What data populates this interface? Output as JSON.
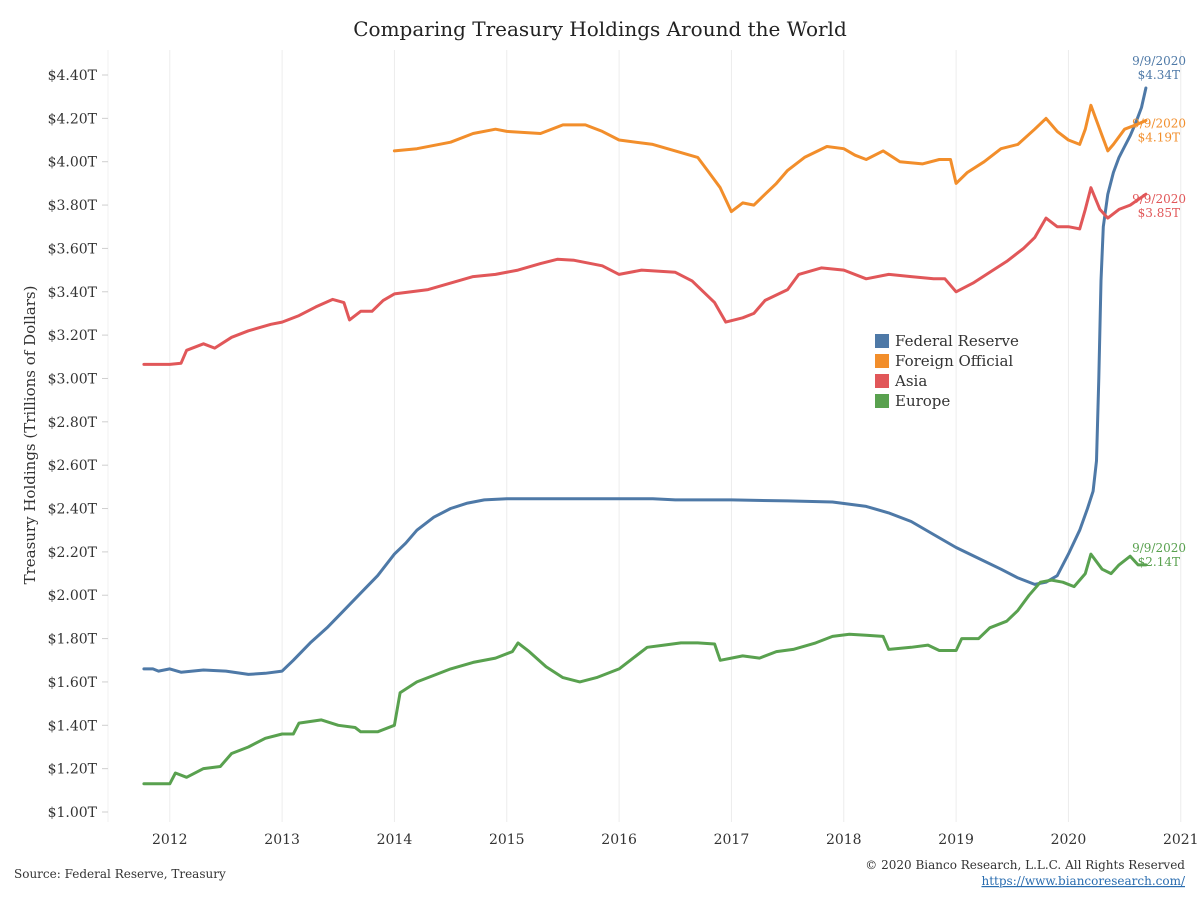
{
  "chart_data": {
    "type": "line",
    "title": "Comparing Treasury Holdings Around the World",
    "ylabel": "Treasury Holdings (Trillions of Dollars)",
    "xlabel": "",
    "xlim": [
      2011.45,
      2021.1
    ],
    "ylim": [
      1.0,
      4.4
    ],
    "y_ticks": [
      1.0,
      1.2,
      1.4,
      1.6,
      1.8,
      2.0,
      2.2,
      2.4,
      2.6,
      2.8,
      3.0,
      3.2,
      3.4,
      3.6,
      3.8,
      4.0,
      4.2,
      4.4
    ],
    "y_tick_labels": [
      "$1.00T",
      "$1.20T",
      "$1.40T",
      "$1.60T",
      "$1.80T",
      "$2.00T",
      "$2.20T",
      "$2.40T",
      "$2.60T",
      "$2.80T",
      "$3.00T",
      "$3.20T",
      "$3.40T",
      "$3.60T",
      "$3.80T",
      "$4.00T",
      "$4.20T",
      "$4.40T"
    ],
    "x_ticks": [
      2012,
      2013,
      2014,
      2015,
      2016,
      2017,
      2018,
      2019,
      2020,
      2021
    ],
    "x_tick_labels": [
      "2012",
      "2013",
      "2014",
      "2015",
      "2016",
      "2017",
      "2018",
      "2019",
      "2020",
      "2021"
    ],
    "grid": {
      "x": true,
      "y": false
    },
    "legend": {
      "placement": "center-right"
    },
    "series": [
      {
        "name": "Federal Reserve",
        "color": "#4e79a7",
        "end_date": "9/9/2020",
        "end_value": "$4.34T",
        "points": [
          [
            2011.77,
            1.66
          ],
          [
            2011.85,
            1.66
          ],
          [
            2011.9,
            1.65
          ],
          [
            2012.0,
            1.66
          ],
          [
            2012.1,
            1.645
          ],
          [
            2012.3,
            1.655
          ],
          [
            2012.5,
            1.65
          ],
          [
            2012.7,
            1.635
          ],
          [
            2012.85,
            1.64
          ],
          [
            2013.0,
            1.65
          ],
          [
            2013.1,
            1.7
          ],
          [
            2013.25,
            1.78
          ],
          [
            2013.4,
            1.85
          ],
          [
            2013.55,
            1.93
          ],
          [
            2013.7,
            2.01
          ],
          [
            2013.85,
            2.09
          ],
          [
            2014.0,
            2.19
          ],
          [
            2014.1,
            2.24
          ],
          [
            2014.2,
            2.3
          ],
          [
            2014.35,
            2.36
          ],
          [
            2014.5,
            2.4
          ],
          [
            2014.65,
            2.425
          ],
          [
            2014.8,
            2.44
          ],
          [
            2015.0,
            2.445
          ],
          [
            2015.5,
            2.445
          ],
          [
            2016.0,
            2.445
          ],
          [
            2016.3,
            2.445
          ],
          [
            2016.5,
            2.44
          ],
          [
            2017.0,
            2.44
          ],
          [
            2017.5,
            2.435
          ],
          [
            2017.9,
            2.43
          ],
          [
            2018.2,
            2.41
          ],
          [
            2018.4,
            2.38
          ],
          [
            2018.6,
            2.34
          ],
          [
            2018.8,
            2.28
          ],
          [
            2019.0,
            2.22
          ],
          [
            2019.2,
            2.17
          ],
          [
            2019.4,
            2.12
          ],
          [
            2019.55,
            2.08
          ],
          [
            2019.7,
            2.05
          ],
          [
            2019.8,
            2.06
          ],
          [
            2019.9,
            2.09
          ],
          [
            2020.0,
            2.19
          ],
          [
            2020.1,
            2.3
          ],
          [
            2020.17,
            2.4
          ],
          [
            2020.22,
            2.48
          ],
          [
            2020.25,
            2.62
          ],
          [
            2020.27,
            3.0
          ],
          [
            2020.29,
            3.45
          ],
          [
            2020.31,
            3.7
          ],
          [
            2020.35,
            3.85
          ],
          [
            2020.4,
            3.95
          ],
          [
            2020.45,
            4.02
          ],
          [
            2020.5,
            4.07
          ],
          [
            2020.55,
            4.12
          ],
          [
            2020.6,
            4.18
          ],
          [
            2020.65,
            4.25
          ],
          [
            2020.69,
            4.34
          ]
        ]
      },
      {
        "name": "Foreign Official",
        "color": "#f28e2b",
        "end_date": "9/9/2020",
        "end_value": "$4.19T",
        "points": [
          [
            2014.0,
            4.05
          ],
          [
            2014.2,
            4.06
          ],
          [
            2014.5,
            4.09
          ],
          [
            2014.7,
            4.13
          ],
          [
            2014.9,
            4.15
          ],
          [
            2015.0,
            4.14
          ],
          [
            2015.3,
            4.13
          ],
          [
            2015.5,
            4.17
          ],
          [
            2015.7,
            4.17
          ],
          [
            2015.85,
            4.14
          ],
          [
            2016.0,
            4.1
          ],
          [
            2016.3,
            4.08
          ],
          [
            2016.5,
            4.05
          ],
          [
            2016.7,
            4.02
          ],
          [
            2016.8,
            3.95
          ],
          [
            2016.9,
            3.88
          ],
          [
            2017.0,
            3.77
          ],
          [
            2017.1,
            3.81
          ],
          [
            2017.2,
            3.8
          ],
          [
            2017.3,
            3.85
          ],
          [
            2017.4,
            3.9
          ],
          [
            2017.5,
            3.96
          ],
          [
            2017.65,
            4.02
          ],
          [
            2017.85,
            4.07
          ],
          [
            2018.0,
            4.06
          ],
          [
            2018.1,
            4.03
          ],
          [
            2018.2,
            4.01
          ],
          [
            2018.35,
            4.05
          ],
          [
            2018.5,
            4.0
          ],
          [
            2018.7,
            3.99
          ],
          [
            2018.85,
            4.01
          ],
          [
            2018.95,
            4.01
          ],
          [
            2019.0,
            3.9
          ],
          [
            2019.1,
            3.95
          ],
          [
            2019.25,
            4.0
          ],
          [
            2019.4,
            4.06
          ],
          [
            2019.55,
            4.08
          ],
          [
            2019.7,
            4.15
          ],
          [
            2019.8,
            4.2
          ],
          [
            2019.9,
            4.14
          ],
          [
            2020.0,
            4.1
          ],
          [
            2020.1,
            4.08
          ],
          [
            2020.15,
            4.15
          ],
          [
            2020.2,
            4.26
          ],
          [
            2020.25,
            4.19
          ],
          [
            2020.3,
            4.12
          ],
          [
            2020.35,
            4.05
          ],
          [
            2020.4,
            4.08
          ],
          [
            2020.5,
            4.15
          ],
          [
            2020.6,
            4.17
          ],
          [
            2020.69,
            4.19
          ]
        ]
      },
      {
        "name": "Asia",
        "color": "#e15759",
        "end_date": "9/9/2020",
        "end_value": "$3.85T",
        "points": [
          [
            2011.77,
            3.065
          ],
          [
            2012.0,
            3.065
          ],
          [
            2012.1,
            3.07
          ],
          [
            2012.15,
            3.13
          ],
          [
            2012.3,
            3.16
          ],
          [
            2012.4,
            3.14
          ],
          [
            2012.55,
            3.19
          ],
          [
            2012.7,
            3.22
          ],
          [
            2012.9,
            3.25
          ],
          [
            2013.0,
            3.26
          ],
          [
            2013.15,
            3.29
          ],
          [
            2013.3,
            3.33
          ],
          [
            2013.45,
            3.365
          ],
          [
            2013.55,
            3.35
          ],
          [
            2013.6,
            3.27
          ],
          [
            2013.7,
            3.31
          ],
          [
            2013.8,
            3.31
          ],
          [
            2013.9,
            3.36
          ],
          [
            2014.0,
            3.39
          ],
          [
            2014.15,
            3.4
          ],
          [
            2014.3,
            3.41
          ],
          [
            2014.5,
            3.44
          ],
          [
            2014.7,
            3.47
          ],
          [
            2014.9,
            3.48
          ],
          [
            2015.1,
            3.5
          ],
          [
            2015.3,
            3.53
          ],
          [
            2015.45,
            3.55
          ],
          [
            2015.6,
            3.545
          ],
          [
            2015.85,
            3.52
          ],
          [
            2016.0,
            3.48
          ],
          [
            2016.2,
            3.5
          ],
          [
            2016.5,
            3.49
          ],
          [
            2016.65,
            3.45
          ],
          [
            2016.75,
            3.4
          ],
          [
            2016.85,
            3.35
          ],
          [
            2016.95,
            3.26
          ],
          [
            2017.1,
            3.28
          ],
          [
            2017.2,
            3.3
          ],
          [
            2017.3,
            3.36
          ],
          [
            2017.5,
            3.41
          ],
          [
            2017.6,
            3.48
          ],
          [
            2017.8,
            3.51
          ],
          [
            2018.0,
            3.5
          ],
          [
            2018.2,
            3.46
          ],
          [
            2018.4,
            3.48
          ],
          [
            2018.6,
            3.47
          ],
          [
            2018.8,
            3.46
          ],
          [
            2018.9,
            3.46
          ],
          [
            2019.0,
            3.4
          ],
          [
            2019.15,
            3.44
          ],
          [
            2019.3,
            3.49
          ],
          [
            2019.45,
            3.54
          ],
          [
            2019.6,
            3.6
          ],
          [
            2019.7,
            3.65
          ],
          [
            2019.8,
            3.74
          ],
          [
            2019.9,
            3.7
          ],
          [
            2020.0,
            3.7
          ],
          [
            2020.1,
            3.69
          ],
          [
            2020.15,
            3.78
          ],
          [
            2020.2,
            3.88
          ],
          [
            2020.28,
            3.78
          ],
          [
            2020.35,
            3.74
          ],
          [
            2020.45,
            3.78
          ],
          [
            2020.55,
            3.8
          ],
          [
            2020.69,
            3.85
          ]
        ]
      },
      {
        "name": "Europe",
        "color": "#59a14f",
        "end_date": "9/9/2020",
        "end_value": "$2.14T",
        "points": [
          [
            2011.77,
            1.13
          ],
          [
            2012.0,
            1.13
          ],
          [
            2012.05,
            1.18
          ],
          [
            2012.15,
            1.16
          ],
          [
            2012.3,
            1.2
          ],
          [
            2012.45,
            1.21
          ],
          [
            2012.55,
            1.27
          ],
          [
            2012.7,
            1.3
          ],
          [
            2012.85,
            1.34
          ],
          [
            2013.0,
            1.36
          ],
          [
            2013.1,
            1.36
          ],
          [
            2013.15,
            1.41
          ],
          [
            2013.35,
            1.425
          ],
          [
            2013.5,
            1.4
          ],
          [
            2013.65,
            1.39
          ],
          [
            2013.7,
            1.37
          ],
          [
            2013.85,
            1.37
          ],
          [
            2014.0,
            1.4
          ],
          [
            2014.05,
            1.55
          ],
          [
            2014.2,
            1.6
          ],
          [
            2014.35,
            1.63
          ],
          [
            2014.5,
            1.66
          ],
          [
            2014.7,
            1.69
          ],
          [
            2014.9,
            1.71
          ],
          [
            2015.05,
            1.74
          ],
          [
            2015.1,
            1.78
          ],
          [
            2015.2,
            1.74
          ],
          [
            2015.35,
            1.67
          ],
          [
            2015.5,
            1.62
          ],
          [
            2015.65,
            1.6
          ],
          [
            2015.8,
            1.62
          ],
          [
            2016.0,
            1.66
          ],
          [
            2016.1,
            1.7
          ],
          [
            2016.25,
            1.76
          ],
          [
            2016.4,
            1.77
          ],
          [
            2016.55,
            1.78
          ],
          [
            2016.7,
            1.78
          ],
          [
            2016.85,
            1.775
          ],
          [
            2016.9,
            1.7
          ],
          [
            2017.0,
            1.71
          ],
          [
            2017.1,
            1.72
          ],
          [
            2017.25,
            1.71
          ],
          [
            2017.4,
            1.74
          ],
          [
            2017.55,
            1.75
          ],
          [
            2017.75,
            1.78
          ],
          [
            2017.9,
            1.81
          ],
          [
            2018.05,
            1.82
          ],
          [
            2018.2,
            1.815
          ],
          [
            2018.35,
            1.81
          ],
          [
            2018.4,
            1.75
          ],
          [
            2018.6,
            1.76
          ],
          [
            2018.75,
            1.77
          ],
          [
            2018.85,
            1.745
          ],
          [
            2019.0,
            1.745
          ],
          [
            2019.05,
            1.8
          ],
          [
            2019.2,
            1.8
          ],
          [
            2019.3,
            1.85
          ],
          [
            2019.45,
            1.88
          ],
          [
            2019.55,
            1.93
          ],
          [
            2019.65,
            2.0
          ],
          [
            2019.75,
            2.06
          ],
          [
            2019.85,
            2.07
          ],
          [
            2019.95,
            2.06
          ],
          [
            2020.05,
            2.04
          ],
          [
            2020.15,
            2.1
          ],
          [
            2020.2,
            2.19
          ],
          [
            2020.3,
            2.12
          ],
          [
            2020.38,
            2.1
          ],
          [
            2020.45,
            2.14
          ],
          [
            2020.55,
            2.18
          ],
          [
            2020.62,
            2.14
          ],
          [
            2020.69,
            2.14
          ]
        ]
      }
    ]
  },
  "footer": {
    "source": "Source: Federal Reserve, Treasury",
    "copyright": "© 2020 Bianco Research, L.L.C. All Rights Reserved",
    "url": "https://www.biancoresearch.com/"
  }
}
